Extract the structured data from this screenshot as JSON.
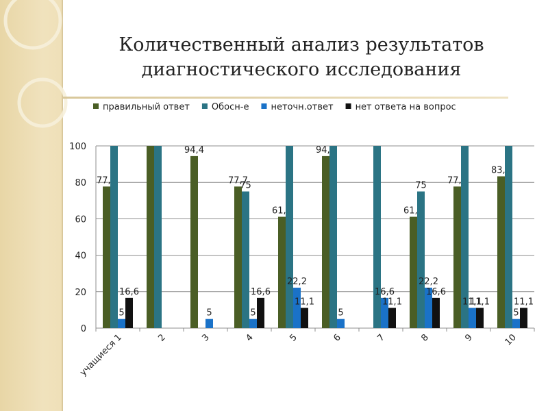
{
  "title_line1": "Количественный анализ результатов",
  "title_line2": "диагностического исследования",
  "chart_data": {
    "type": "bar",
    "categories": [
      "учащиеся 1",
      "2",
      "3",
      "4",
      "5",
      "6",
      "7",
      "8",
      "9",
      "10"
    ],
    "ylim": [
      0,
      100
    ],
    "yticks": [
      0,
      20,
      40,
      60,
      80,
      100
    ],
    "grid": true,
    "legend_position": "top",
    "series": [
      {
        "name": "правильный ответ",
        "color": "#4a5e25",
        "values": [
          77.7,
          100,
          94.4,
          77.7,
          61.1,
          94.4,
          0,
          61.1,
          77.7,
          83.3
        ],
        "labels": [
          "77,7",
          "",
          "94,4",
          "77,7",
          "61,1",
          "94,4",
          "",
          "61,1",
          "77,7",
          "83,3"
        ]
      },
      {
        "name": "Обосн-е",
        "color": "#2b7484",
        "values": [
          100,
          100,
          0,
          75,
          100,
          100,
          100,
          75,
          100,
          100
        ],
        "labels": [
          "",
          "",
          "",
          "75",
          "",
          "",
          "",
          "75",
          "",
          ""
        ]
      },
      {
        "name": "неточн.ответ",
        "color": "#1a72c8",
        "values": [
          5,
          0,
          5,
          5,
          22.2,
          5,
          16.6,
          22.2,
          11.1,
          5
        ],
        "labels": [
          "5",
          "",
          "5",
          "5",
          "22,2",
          "5",
          "16,6",
          "22,2",
          "11,1",
          "5"
        ]
      },
      {
        "name": "нет ответа на вопрос",
        "color": "#111111",
        "values": [
          16.6,
          0,
          0,
          16.6,
          11.1,
          0,
          11.1,
          16.6,
          11.1,
          11.1
        ],
        "labels": [
          "16,6",
          "",
          "",
          "16,6",
          "11,1",
          "",
          "11,1",
          "16,6",
          "11,1",
          "11,1"
        ]
      }
    ]
  }
}
